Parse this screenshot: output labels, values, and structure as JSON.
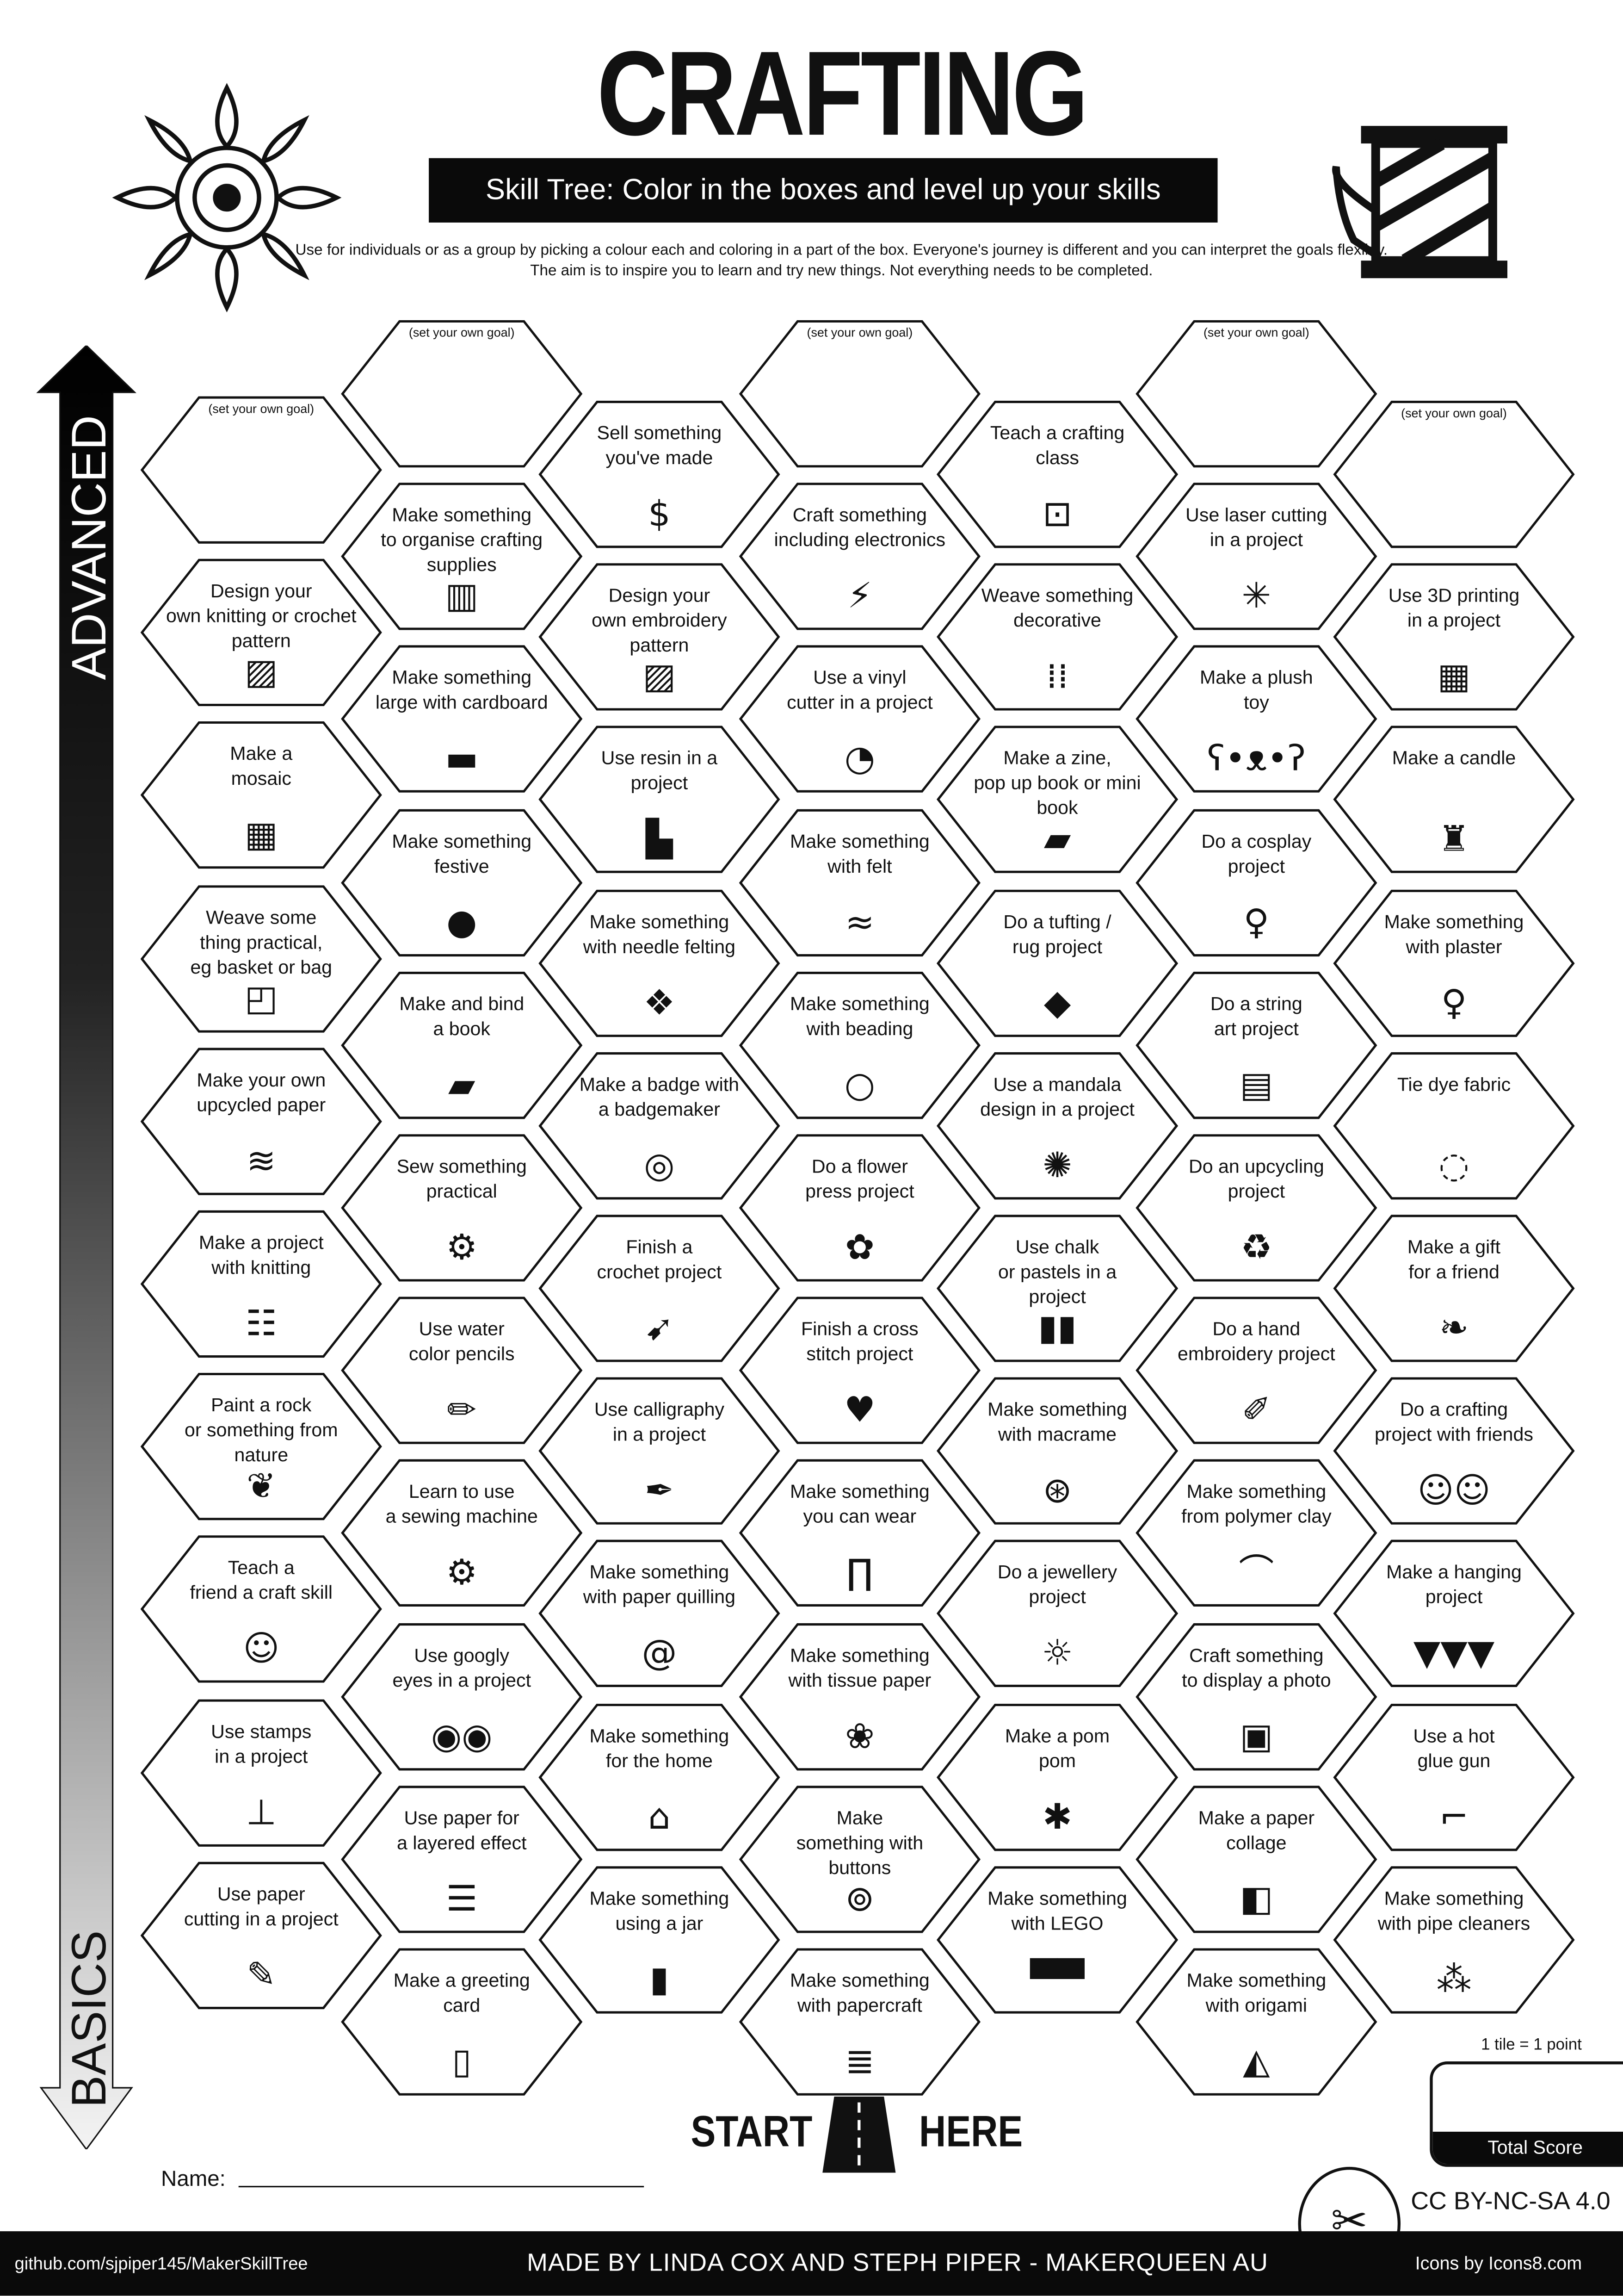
{
  "header": {
    "title": "CRAFTING",
    "subtitle": "Skill Tree:  Color in the boxes and level up your skills",
    "description": "Use for individuals or as a group by picking a colour each and coloring in a part of the box.  Everyone's journey is different and you can interpret the goals flexibly.  The aim is to inspire you to learn and try new things. Not everything needs to be completed.",
    "left_icon": "mandala-icon",
    "right_icon": "thread-spool-icon"
  },
  "axis": {
    "top_label": "ADVANCED",
    "bottom_label": "BASICS"
  },
  "columns": [
    [
      {
        "label": "(set your own goal)",
        "goal": true
      },
      {
        "label": "Design your\nown knitting or crochet\npattern",
        "icon": "pattern-icon"
      },
      {
        "label": "Make a\nmosaic",
        "icon": "mosaic-icon"
      },
      {
        "label": "Weave some\nthing practical,\neg basket or bag",
        "icon": "bag-icon"
      },
      {
        "label": "Make your own\nupcycled paper",
        "icon": "scroll-icon"
      },
      {
        "label": "Make a project\nwith knitting",
        "icon": "knitting-icon"
      },
      {
        "label": "Paint a rock\nor something from\nnature",
        "icon": "leaf-icon"
      },
      {
        "label": "Teach a\nfriend a craft skill",
        "icon": "teacher-icon"
      },
      {
        "label": "Use stamps\nin a project",
        "icon": "stamp-icon"
      },
      {
        "label": "Use paper\ncutting in a project",
        "icon": "craft-knife-icon"
      }
    ],
    [
      {
        "label": "(set your own goal)",
        "goal": true
      },
      {
        "label": "Make something\nto organise crafting\nsupplies",
        "icon": "organise-icon"
      },
      {
        "label": "Make something\nlarge with cardboard",
        "icon": "cardboard-icon"
      },
      {
        "label": "Make something\nfestive",
        "icon": "ornament-icon"
      },
      {
        "label": "Make and bind\na book",
        "icon": "book-icon"
      },
      {
        "label": "Sew something\npractical",
        "icon": "sewing-machine-icon"
      },
      {
        "label": "Use water\ncolor pencils",
        "icon": "pencil-icon"
      },
      {
        "label": "Learn to use\na sewing machine",
        "icon": "sewing-machine-icon"
      },
      {
        "label": "Use googly\neyes in a project",
        "icon": "googly-eyes-icon"
      },
      {
        "label": "Use paper for\na layered effect",
        "icon": "paper-layers-icon"
      },
      {
        "label": "Make a greeting\ncard",
        "icon": "greeting-card-icon"
      }
    ],
    [
      {
        "label": "Sell something\nyou've made",
        "icon": "money-bag-icon"
      },
      {
        "label": "Design your\nown embroidery\npattern",
        "icon": "pattern-icon"
      },
      {
        "label": "Use resin in a\nproject",
        "icon": "resin-icon"
      },
      {
        "label": "Make something\nwith needle felting",
        "icon": "felt-animal-icon"
      },
      {
        "label": "Make a badge with\na badgemaker",
        "icon": "badge-icon"
      },
      {
        "label": "Finish a\ncrochet project",
        "icon": "crochet-hook-icon"
      },
      {
        "label": "Use calligraphy\nin a project",
        "icon": "fountain-pen-icon"
      },
      {
        "label": "Make something\nwith paper quilling",
        "icon": "quilling-spiral-icon"
      },
      {
        "label": "Make something\nfor the home",
        "icon": "home-icon"
      },
      {
        "label": "Make something\nusing a jar",
        "icon": "jar-icon"
      }
    ],
    [
      {
        "label": "(set your own goal)",
        "goal": true
      },
      {
        "label": "Craft something\nincluding electronics",
        "icon": "led-icon"
      },
      {
        "label": "Use a vinyl\ncutter in a project",
        "icon": "sticker-icon"
      },
      {
        "label": "Make something\nwith felt",
        "icon": "felt-icon"
      },
      {
        "label": "Make something\nwith beading",
        "icon": "beads-icon"
      },
      {
        "label": "Do a flower\npress project",
        "icon": "flower-icon"
      },
      {
        "label": "Finish a cross\nstitch project",
        "icon": "cross-stitch-heart-icon"
      },
      {
        "label": "Make something\nyou can wear",
        "icon": "trousers-icon"
      },
      {
        "label": "Make something\nwith tissue paper",
        "icon": "lotus-icon"
      },
      {
        "label": "Make\nsomething with\nbuttons",
        "icon": "button-icon"
      },
      {
        "label": "Make something\nwith papercraft",
        "icon": "paper-stack-icon"
      }
    ],
    [
      {
        "label": "Teach a crafting\nclass",
        "icon": "teacher-board-icon"
      },
      {
        "label": "Weave something\ndecorative",
        "icon": "weave-icon"
      },
      {
        "label": "Make a zine,\npop up book or mini book",
        "icon": "book-icon"
      },
      {
        "label": "Do a tufting /\nrug project",
        "icon": "rug-icon"
      },
      {
        "label": "Use a mandala\ndesign in a project",
        "icon": "mandala-icon"
      },
      {
        "label": "Use chalk\nor pastels in a\nproject",
        "icon": "pastels-icon"
      },
      {
        "label": "Make something\nwith macrame",
        "icon": "dreamcatcher-icon"
      },
      {
        "label": "Do a jewellery\nproject",
        "icon": "necklace-icon"
      },
      {
        "label": "Make a pom\npom",
        "icon": "pompom-icon"
      },
      {
        "label": "Make something\nwith LEGO",
        "icon": "lego-icon"
      }
    ],
    [
      {
        "label": "(set your own goal)",
        "goal": true
      },
      {
        "label": "Use laser cutting\nin a project",
        "icon": "laser-icon"
      },
      {
        "label": "Make a plush\ntoy",
        "icon": "teddy-bear-icon"
      },
      {
        "label": "Do a cosplay\nproject",
        "icon": "mannequin-icon"
      },
      {
        "label": "Do a string\nart project",
        "icon": "spool-icon"
      },
      {
        "label": "Do an upcycling\nproject",
        "icon": "recycle-icon"
      },
      {
        "label": "Do a hand\nembroidery project",
        "icon": "needle-icon"
      },
      {
        "label": "Make something\nfrom polymer clay",
        "icon": "rainbow-icon"
      },
      {
        "label": "Craft something\nto display a photo",
        "icon": "picture-frame-icon"
      },
      {
        "label": "Make a paper\ncollage",
        "icon": "collage-icon"
      },
      {
        "label": "Make something\nwith origami",
        "icon": "origami-icon"
      }
    ],
    [
      {
        "label": "(set your own goal)",
        "goal": true
      },
      {
        "label": "Use 3D printing\nin a project",
        "icon": "3d-printer-icon"
      },
      {
        "label": "Make a candle",
        "icon": "candle-icon"
      },
      {
        "label": "Make something\nwith plaster",
        "icon": "statue-icon"
      },
      {
        "label": "Tie dye fabric",
        "icon": "tie-dye-icon"
      },
      {
        "label": "Make a gift\nfor a friend",
        "icon": "gift-bow-icon"
      },
      {
        "label": "Do a crafting\nproject with friends",
        "icon": "group-icon"
      },
      {
        "label": "Make a hanging\nproject",
        "icon": "bunting-icon"
      },
      {
        "label": "Use a hot\nglue gun",
        "icon": "glue-gun-icon"
      },
      {
        "label": "Make something\nwith pipe cleaners",
        "icon": "pipe-cleaner-icon"
      }
    ]
  ],
  "start": {
    "left": "START",
    "right": "HERE",
    "icon": "road-icon"
  },
  "name_label": "Name:",
  "score": {
    "note": "1 tile = 1 point",
    "label": "Total Score"
  },
  "license": "CC BY-NC-SA 4.0",
  "footer": {
    "github": "github.com/sjpiper145/MakerSkillTree",
    "credits": "MADE BY LINDA COX  AND STEPH PIPER  -  MAKERQUEEN AU",
    "icons_credit": "Icons by Icons8.com"
  }
}
